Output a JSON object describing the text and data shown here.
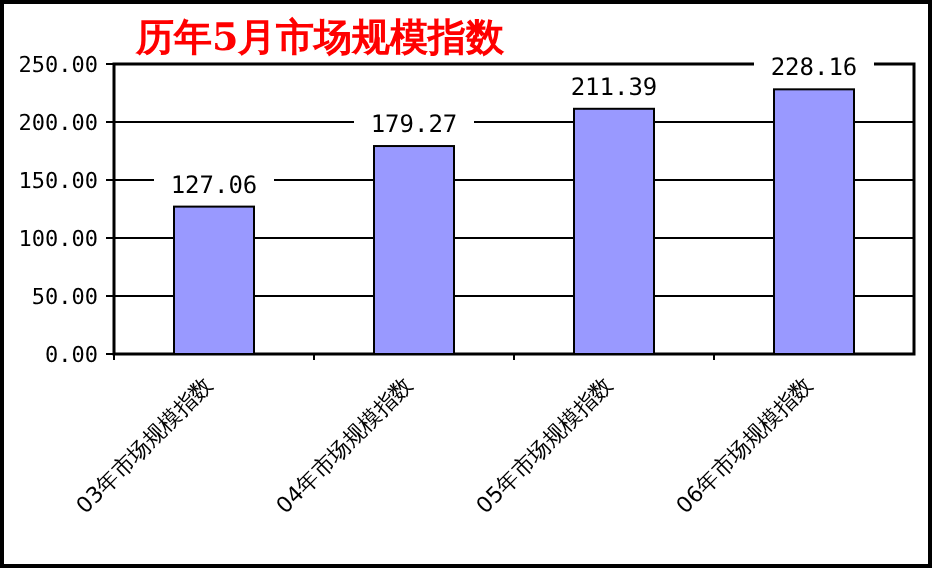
{
  "chart_data": {
    "type": "bar",
    "title": "历年5月市场规模指数",
    "categories": [
      "03年市场规模指数",
      "04年市场规模指数",
      "05年市场规模指数",
      "06年市场规模指数"
    ],
    "values": [
      127.06,
      179.27,
      211.39,
      228.16
    ],
    "color": "#9999ff",
    "ylim": [
      0,
      250
    ],
    "yticks": [
      {
        "value": 0,
        "label": "0.00"
      },
      {
        "value": 50,
        "label": "50.00"
      },
      {
        "value": 100,
        "label": "100.00"
      },
      {
        "value": 150,
        "label": "150.00"
      },
      {
        "value": 200,
        "label": "200.00"
      },
      {
        "value": 250,
        "label": "250.00"
      }
    ],
    "grid": "y",
    "data_labels": true
  }
}
